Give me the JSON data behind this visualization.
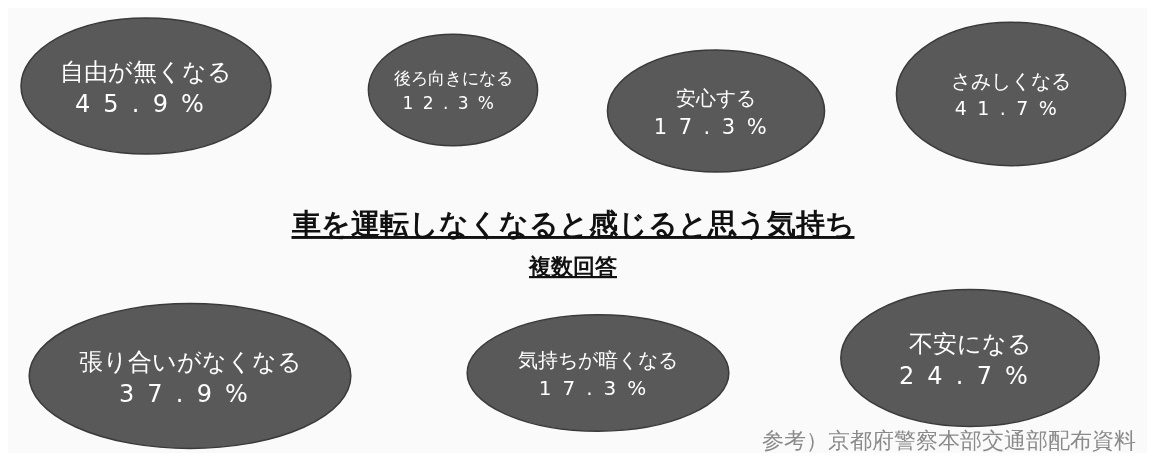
{
  "chart_data": {
    "type": "other",
    "title": "車を運転しなくなると感じると思う気持ち",
    "subtitle": "複数回答",
    "categories": [
      "自由が無くなる",
      "後ろ向きになる",
      "安心する",
      "さみしくなる",
      "張り合いがなくなる",
      "気持ちが暗くなる",
      "不安になる"
    ],
    "values": [
      45.9,
      12.3,
      17.3,
      41.7,
      37.9,
      17.3,
      24.7
    ],
    "value_labels": [
      "45.9%",
      "12.3%",
      "17.3%",
      "41.7%",
      "37.9%",
      "17.3%",
      "24.7%"
    ],
    "color": "#595959",
    "annotations": [
      "参考）京都府警察本部交通部配布資料"
    ]
  }
}
